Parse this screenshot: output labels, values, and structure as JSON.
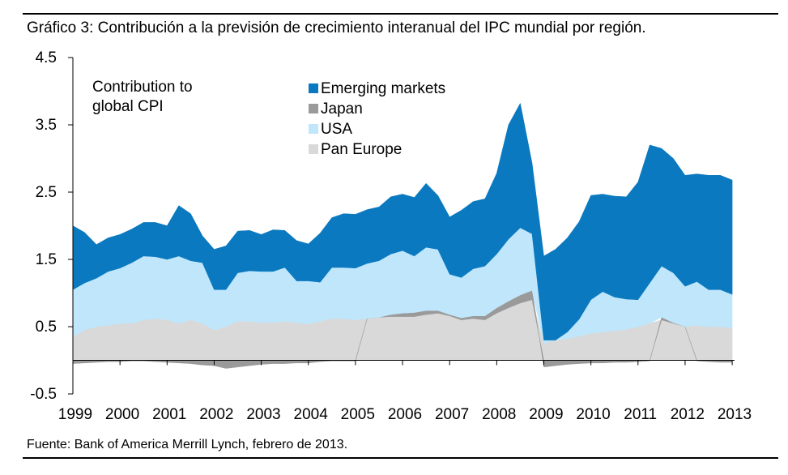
{
  "figure": {
    "title": "Gráfico 3: Contribución a la previsión de crecimiento interanual del IPC mundial por región.",
    "source": "Fuente: Bank of America Merrill Lynch, febrero de 2013."
  },
  "chart_data": {
    "type": "area",
    "stacked": true,
    "title": "Gráfico 3: Contribución a la previsión de crecimiento interanual del IPC mundial por región.",
    "annotation": [
      "Contribution to",
      "global CPI"
    ],
    "xlabel": "",
    "ylabel": "",
    "ylim": [
      -0.5,
      4.5
    ],
    "yticks": [
      4.5,
      3.5,
      2.5,
      1.5,
      0.5,
      -0.5
    ],
    "ytick_labels": [
      "4.5",
      "3.5",
      "2.5",
      "1.5",
      "0.5",
      "-0.5"
    ],
    "xlim": [
      1999,
      2013.05
    ],
    "xtick_labels": [
      "1999",
      "2000",
      "2001",
      "2002",
      "2003",
      "2004",
      "2005",
      "2006",
      "2007",
      "2008",
      "2009",
      "2010",
      "2011",
      "2012",
      "2013"
    ],
    "legend_position": "top-center",
    "legend": [
      "Emerging markets",
      "Japan",
      "USA",
      "Pan Europe"
    ],
    "colors": {
      "Emerging markets": "#0a79bf",
      "Japan": "#9a9a9a",
      "USA": "#bfe6fb",
      "Pan Europe": "#d9d9d9"
    },
    "x": [
      1999.0,
      1999.25,
      1999.5,
      1999.75,
      2000.0,
      2000.25,
      2000.5,
      2000.75,
      2001.0,
      2001.25,
      2001.5,
      2001.75,
      2002.0,
      2002.25,
      2002.5,
      2002.75,
      2003.0,
      2003.25,
      2003.5,
      2003.75,
      2004.0,
      2004.25,
      2004.5,
      2004.75,
      2005.0,
      2005.25,
      2005.5,
      2005.75,
      2006.0,
      2006.25,
      2006.5,
      2006.75,
      2007.0,
      2007.25,
      2007.5,
      2007.75,
      2008.0,
      2008.25,
      2008.5,
      2008.75,
      2009.0,
      2009.25,
      2009.5,
      2009.75,
      2010.0,
      2010.25,
      2010.5,
      2010.75,
      2011.0,
      2011.25,
      2011.5,
      2011.75,
      2012.0,
      2012.25,
      2012.5,
      2012.75,
      2013.0
    ],
    "series": [
      {
        "name": "Pan Europe",
        "values": [
          0.35,
          0.45,
          0.5,
          0.52,
          0.55,
          0.55,
          0.6,
          0.62,
          0.6,
          0.55,
          0.6,
          0.55,
          0.45,
          0.5,
          0.58,
          0.58,
          0.56,
          0.56,
          0.58,
          0.56,
          0.54,
          0.58,
          0.62,
          0.62,
          0.6,
          0.62,
          0.64,
          0.65,
          0.65,
          0.65,
          0.68,
          0.7,
          0.66,
          0.6,
          0.62,
          0.6,
          0.7,
          0.78,
          0.85,
          0.9,
          0.25,
          0.3,
          0.32,
          0.36,
          0.4,
          0.42,
          0.44,
          0.46,
          0.5,
          0.55,
          0.6,
          0.55,
          0.5,
          0.52,
          0.5,
          0.5,
          0.48
        ]
      },
      {
        "name": "Japan",
        "values": [
          -0.05,
          -0.04,
          -0.03,
          -0.02,
          -0.02,
          -0.01,
          -0.01,
          -0.02,
          -0.03,
          -0.04,
          -0.05,
          -0.07,
          -0.08,
          -0.12,
          -0.1,
          -0.08,
          -0.06,
          -0.05,
          -0.05,
          -0.04,
          -0.04,
          -0.02,
          -0.01,
          -0.01,
          -0.01,
          0.0,
          0.0,
          0.03,
          0.05,
          0.06,
          0.06,
          0.04,
          0.02,
          0.03,
          0.04,
          0.06,
          0.08,
          0.1,
          0.12,
          0.14,
          -0.1,
          -0.08,
          -0.06,
          -0.05,
          -0.04,
          -0.04,
          -0.03,
          -0.03,
          -0.02,
          -0.01,
          0.04,
          0.01,
          0.0,
          -0.01,
          -0.02,
          -0.03,
          -0.03
        ]
      },
      {
        "name": "USA",
        "values": [
          0.7,
          0.7,
          0.72,
          0.8,
          0.82,
          0.9,
          0.95,
          0.92,
          0.9,
          1.0,
          0.88,
          0.9,
          0.6,
          0.55,
          0.72,
          0.75,
          0.76,
          0.76,
          0.8,
          0.62,
          0.64,
          0.58,
          0.76,
          0.76,
          0.77,
          0.82,
          0.84,
          0.9,
          0.93,
          0.84,
          0.94,
          0.91,
          0.6,
          0.6,
          0.7,
          0.74,
          0.8,
          0.92,
          1.0,
          0.84,
          0.05,
          0.0,
          0.1,
          0.25,
          0.5,
          0.6,
          0.5,
          0.45,
          0.4,
          0.6,
          0.76,
          0.74,
          0.6,
          0.65,
          0.55,
          0.55,
          0.5
        ]
      },
      {
        "name": "Emerging markets",
        "values": [
          0.95,
          0.75,
          0.5,
          0.5,
          0.5,
          0.5,
          0.5,
          0.51,
          0.5,
          0.75,
          0.7,
          0.4,
          0.6,
          0.65,
          0.62,
          0.6,
          0.55,
          0.62,
          0.55,
          0.6,
          0.55,
          0.73,
          0.74,
          0.8,
          0.8,
          0.8,
          0.8,
          0.85,
          0.84,
          0.87,
          0.95,
          0.8,
          0.85,
          1.0,
          1.0,
          1.0,
          1.2,
          1.7,
          1.85,
          1.05,
          1.25,
          1.35,
          1.4,
          1.45,
          1.55,
          1.45,
          1.5,
          1.52,
          1.75,
          2.05,
          1.75,
          1.7,
          1.65,
          1.6,
          1.7,
          1.7,
          1.7
        ]
      }
    ]
  }
}
